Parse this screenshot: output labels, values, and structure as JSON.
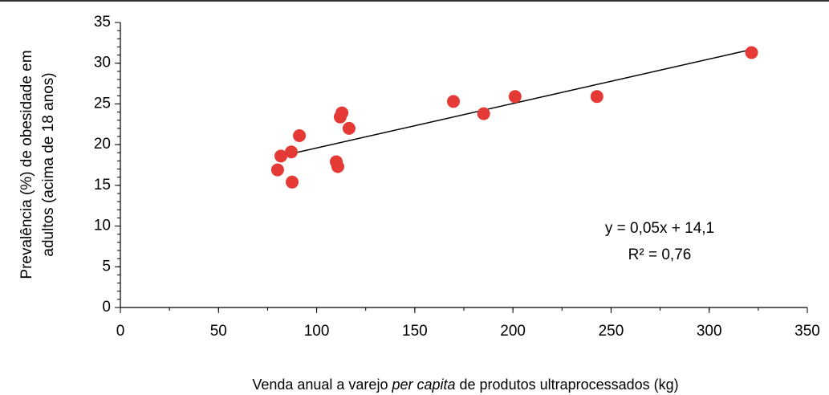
{
  "chart_data": {
    "type": "scatter",
    "xlabel": [
      "Venda anual a varejo ",
      "per capita",
      " de produtos ultraprocessados (kg)"
    ],
    "ylabel": [
      "Prevalência (%) de obesidade em",
      "adultos (acima de 18 anos)"
    ],
    "annotations": [
      "y = 0,05x + 14,1",
      "R² = 0,76"
    ],
    "series": [
      {
        "color": "#e53935",
        "x": [
          80.1,
          81.8,
          87.1,
          87.5,
          91.2,
          110,
          110.8,
          112,
          112.9,
          116.5,
          169.7,
          185.1,
          201.1,
          242.8,
          321.6
        ],
        "values": [
          16.9,
          18.6,
          19.1,
          15.4,
          21.1,
          17.9,
          17.3,
          23.4,
          23.9,
          22.0,
          25.3,
          23.8,
          25.9,
          25.9,
          31.3
        ]
      }
    ],
    "trendline": {
      "color": "#000000",
      "x": [
        80,
        320
      ],
      "values": [
        18.5,
        31.6
      ]
    },
    "xlim": [
      0,
      350
    ],
    "xticks": [
      0,
      50,
      100,
      150,
      200,
      250,
      300,
      350
    ],
    "ylim": [
      0,
      35
    ],
    "yticks": [
      0,
      5,
      10,
      15,
      20,
      25,
      30,
      35
    ],
    "minor_xtick_step": 25,
    "minor_ytick_step": 1
  }
}
